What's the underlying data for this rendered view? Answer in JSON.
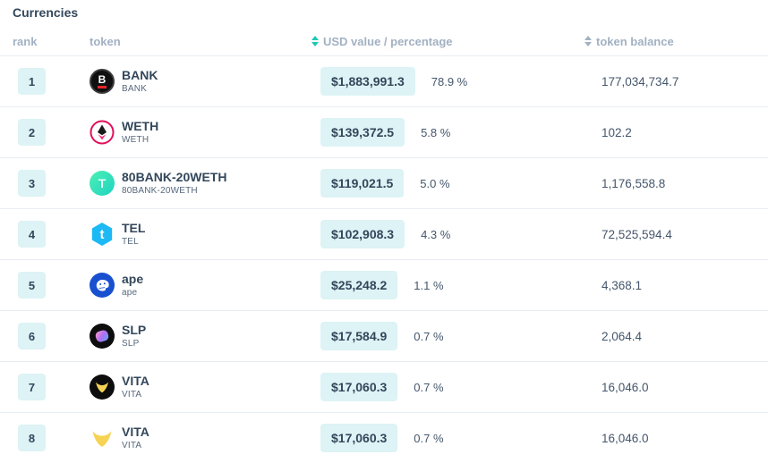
{
  "page": {
    "title": "Currencies"
  },
  "table": {
    "columns": {
      "rank": "rank",
      "token": "token",
      "usd": "USD value / percentage",
      "balance": "token balance"
    },
    "sort": {
      "usd_icon": "sort-arrows-icon",
      "balance_icon": "sort-arrows-icon",
      "usd_active_color": "#1fc7b5",
      "inactive_color": "#a2b1c2"
    },
    "rows": [
      {
        "rank": "1",
        "name": "BANK",
        "symbol": "BANK",
        "usd": "$1,883,991.3",
        "pct": "78.9 %",
        "balance": "177,034,734.7",
        "icon": "bank"
      },
      {
        "rank": "2",
        "name": "WETH",
        "symbol": "WETH",
        "usd": "$139,372.5",
        "pct": "5.8 %",
        "balance": "102.2",
        "icon": "weth"
      },
      {
        "rank": "3",
        "name": "80BANK-20WETH",
        "symbol": "80BANK-20WETH",
        "usd": "$119,021.5",
        "pct": "5.0 %",
        "balance": "1,176,558.8",
        "icon": "bank-weth-lp"
      },
      {
        "rank": "4",
        "name": "TEL",
        "symbol": "TEL",
        "usd": "$102,908.3",
        "pct": "4.3 %",
        "balance": "72,525,594.4",
        "icon": "tel"
      },
      {
        "rank": "5",
        "name": "ape",
        "symbol": "ape",
        "usd": "$25,248.2",
        "pct": "1.1 %",
        "balance": "4,368.1",
        "icon": "ape"
      },
      {
        "rank": "6",
        "name": "SLP",
        "symbol": "SLP",
        "usd": "$17,584.9",
        "pct": "0.7 %",
        "balance": "2,064.4",
        "icon": "slp"
      },
      {
        "rank": "7",
        "name": "VITA",
        "symbol": "VITA",
        "usd": "$17,060.3",
        "pct": "0.7 %",
        "balance": "16,046.0",
        "icon": "vita-dark"
      },
      {
        "rank": "8",
        "name": "VITA",
        "symbol": "VITA",
        "usd": "$17,060.3",
        "pct": "0.7 %",
        "balance": "16,046.0",
        "icon": "vita-light"
      }
    ]
  },
  "colors": {
    "accent_teal": "#1fc7b5",
    "badge_bg": "#ddf3f5",
    "text_dark": "#33475b",
    "header_gray": "#a2b1c2",
    "row_border": "#e8edf2"
  }
}
